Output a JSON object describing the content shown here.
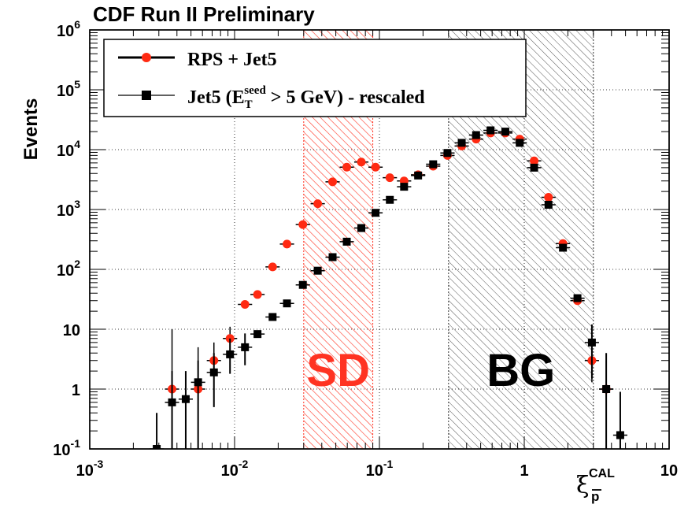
{
  "chart_data": {
    "type": "scatter",
    "title": "CDF Run II Preliminary",
    "ylabel": "Events",
    "xlabel": {
      "main": "ξ",
      "sup": "CAL",
      "sub": "p"
    },
    "x_scale": "log",
    "y_scale": "log",
    "xlim": [
      0.001,
      10
    ],
    "ylim": [
      0.1,
      1000000
    ],
    "grid": true,
    "x_ticks": [
      {
        "value": 0.001,
        "base": "10",
        "exp": "-3"
      },
      {
        "value": 0.01,
        "base": "10",
        "exp": "-2"
      },
      {
        "value": 0.1,
        "base": "10",
        "exp": "-1"
      },
      {
        "value": 1,
        "base": "1",
        "exp": ""
      },
      {
        "value": 10,
        "base": "10",
        "exp": ""
      }
    ],
    "y_ticks": [
      {
        "value": 0.1,
        "base": "10",
        "exp": "-1"
      },
      {
        "value": 1,
        "base": "1",
        "exp": ""
      },
      {
        "value": 10,
        "base": "10",
        "exp": ""
      },
      {
        "value": 100,
        "base": "10",
        "exp": "2"
      },
      {
        "value": 1000,
        "base": "10",
        "exp": "3"
      },
      {
        "value": 10000,
        "base": "10",
        "exp": "4"
      },
      {
        "value": 100000,
        "base": "10",
        "exp": "5"
      },
      {
        "value": 1000000,
        "base": "10",
        "exp": "6"
      }
    ],
    "regions": [
      {
        "label": "SD",
        "x_range": [
          0.03,
          0.09
        ],
        "color": "#ff3322"
      },
      {
        "label": "BG",
        "x_range": [
          0.3,
          3.0
        ],
        "color": "#000000"
      }
    ],
    "legend": {
      "placement": "top-left",
      "entries": [
        {
          "series": 0,
          "parts": [
            {
              "t": "RPS + Jet5"
            }
          ]
        },
        {
          "series": 1,
          "parts": [
            {
              "t": "Jet5 (E"
            },
            {
              "t": "T",
              "sub": true
            },
            {
              "t": "seed",
              "sup": true
            },
            {
              "t": " > 5 GeV) - rescaled"
            }
          ]
        }
      ]
    },
    "series": [
      {
        "name": "RPS + Jet5",
        "color": "#ff2a12",
        "marker": "circle",
        "points": [
          {
            "x": 0.0037,
            "y": 1,
            "lo": 0.1,
            "hi": 10
          },
          {
            "x": 0.0056,
            "y": 1,
            "lo": 0.1,
            "hi": 5
          },
          {
            "x": 0.0072,
            "y": 3,
            "lo": 1.3,
            "hi": 6
          },
          {
            "x": 0.0093,
            "y": 7,
            "lo": 4,
            "hi": 11
          },
          {
            "x": 0.0118,
            "y": 26
          },
          {
            "x": 0.0144,
            "y": 38
          },
          {
            "x": 0.0183,
            "y": 110
          },
          {
            "x": 0.023,
            "y": 265
          },
          {
            "x": 0.0296,
            "y": 560
          },
          {
            "x": 0.0375,
            "y": 1250
          },
          {
            "x": 0.0475,
            "y": 2900
          },
          {
            "x": 0.0595,
            "y": 5100
          },
          {
            "x": 0.075,
            "y": 6200
          },
          {
            "x": 0.094,
            "y": 5100
          },
          {
            "x": 0.118,
            "y": 3400
          },
          {
            "x": 0.148,
            "y": 3000
          },
          {
            "x": 0.185,
            "y": 3800
          },
          {
            "x": 0.235,
            "y": 5300
          },
          {
            "x": 0.295,
            "y": 8000
          },
          {
            "x": 0.37,
            "y": 11500
          },
          {
            "x": 0.465,
            "y": 15000
          },
          {
            "x": 0.585,
            "y": 19000
          },
          {
            "x": 0.74,
            "y": 19000
          },
          {
            "x": 0.93,
            "y": 15000
          },
          {
            "x": 1.17,
            "y": 6500
          },
          {
            "x": 1.47,
            "y": 1600
          },
          {
            "x": 1.85,
            "y": 270
          },
          {
            "x": 2.33,
            "y": 30
          },
          {
            "x": 2.93,
            "y": 3,
            "lo": 1.3,
            "hi": 6
          },
          {
            "x": 3.68,
            "y": 1,
            "lo": 0.1,
            "hi": 3
          }
        ]
      },
      {
        "name": "Jet5 (E_T^seed > 5 GeV) - rescaled",
        "color": "#000000",
        "marker": "square",
        "points": [
          {
            "x": 0.0029,
            "y": 0.1,
            "lo": 0.1,
            "hi": 0.4
          },
          {
            "x": 0.0037,
            "y": 0.6,
            "lo": 0.1,
            "hi": 2
          },
          {
            "x": 0.0046,
            "y": 0.68,
            "lo": 0.1,
            "hi": 2
          },
          {
            "x": 0.0056,
            "y": 1.3,
            "lo": 0.1,
            "hi": 3
          },
          {
            "x": 0.0072,
            "y": 1.9,
            "lo": 0.5,
            "hi": 4
          },
          {
            "x": 0.0093,
            "y": 3.8,
            "lo": 1.8,
            "hi": 7
          },
          {
            "x": 0.0118,
            "y": 5,
            "lo": 2.5,
            "hi": 8.5
          },
          {
            "x": 0.0144,
            "y": 8.3
          },
          {
            "x": 0.0183,
            "y": 16
          },
          {
            "x": 0.023,
            "y": 27
          },
          {
            "x": 0.0296,
            "y": 55
          },
          {
            "x": 0.0375,
            "y": 95
          },
          {
            "x": 0.0475,
            "y": 160
          },
          {
            "x": 0.0595,
            "y": 290
          },
          {
            "x": 0.075,
            "y": 490
          },
          {
            "x": 0.094,
            "y": 880
          },
          {
            "x": 0.118,
            "y": 1450
          },
          {
            "x": 0.148,
            "y": 2400
          },
          {
            "x": 0.185,
            "y": 3700
          },
          {
            "x": 0.235,
            "y": 5700
          },
          {
            "x": 0.295,
            "y": 8800
          },
          {
            "x": 0.37,
            "y": 13000
          },
          {
            "x": 0.465,
            "y": 17500
          },
          {
            "x": 0.585,
            "y": 21000
          },
          {
            "x": 0.74,
            "y": 20000
          },
          {
            "x": 0.93,
            "y": 13000
          },
          {
            "x": 1.17,
            "y": 5000
          },
          {
            "x": 1.47,
            "y": 1200
          },
          {
            "x": 1.85,
            "y": 230
          },
          {
            "x": 2.33,
            "y": 33
          },
          {
            "x": 2.93,
            "y": 6,
            "lo": 1.5,
            "hi": 12
          },
          {
            "x": 3.68,
            "y": 1,
            "lo": 0.1,
            "hi": 4
          },
          {
            "x": 4.6,
            "y": 0.17,
            "lo": 0.1,
            "hi": 0.9
          }
        ]
      }
    ]
  }
}
